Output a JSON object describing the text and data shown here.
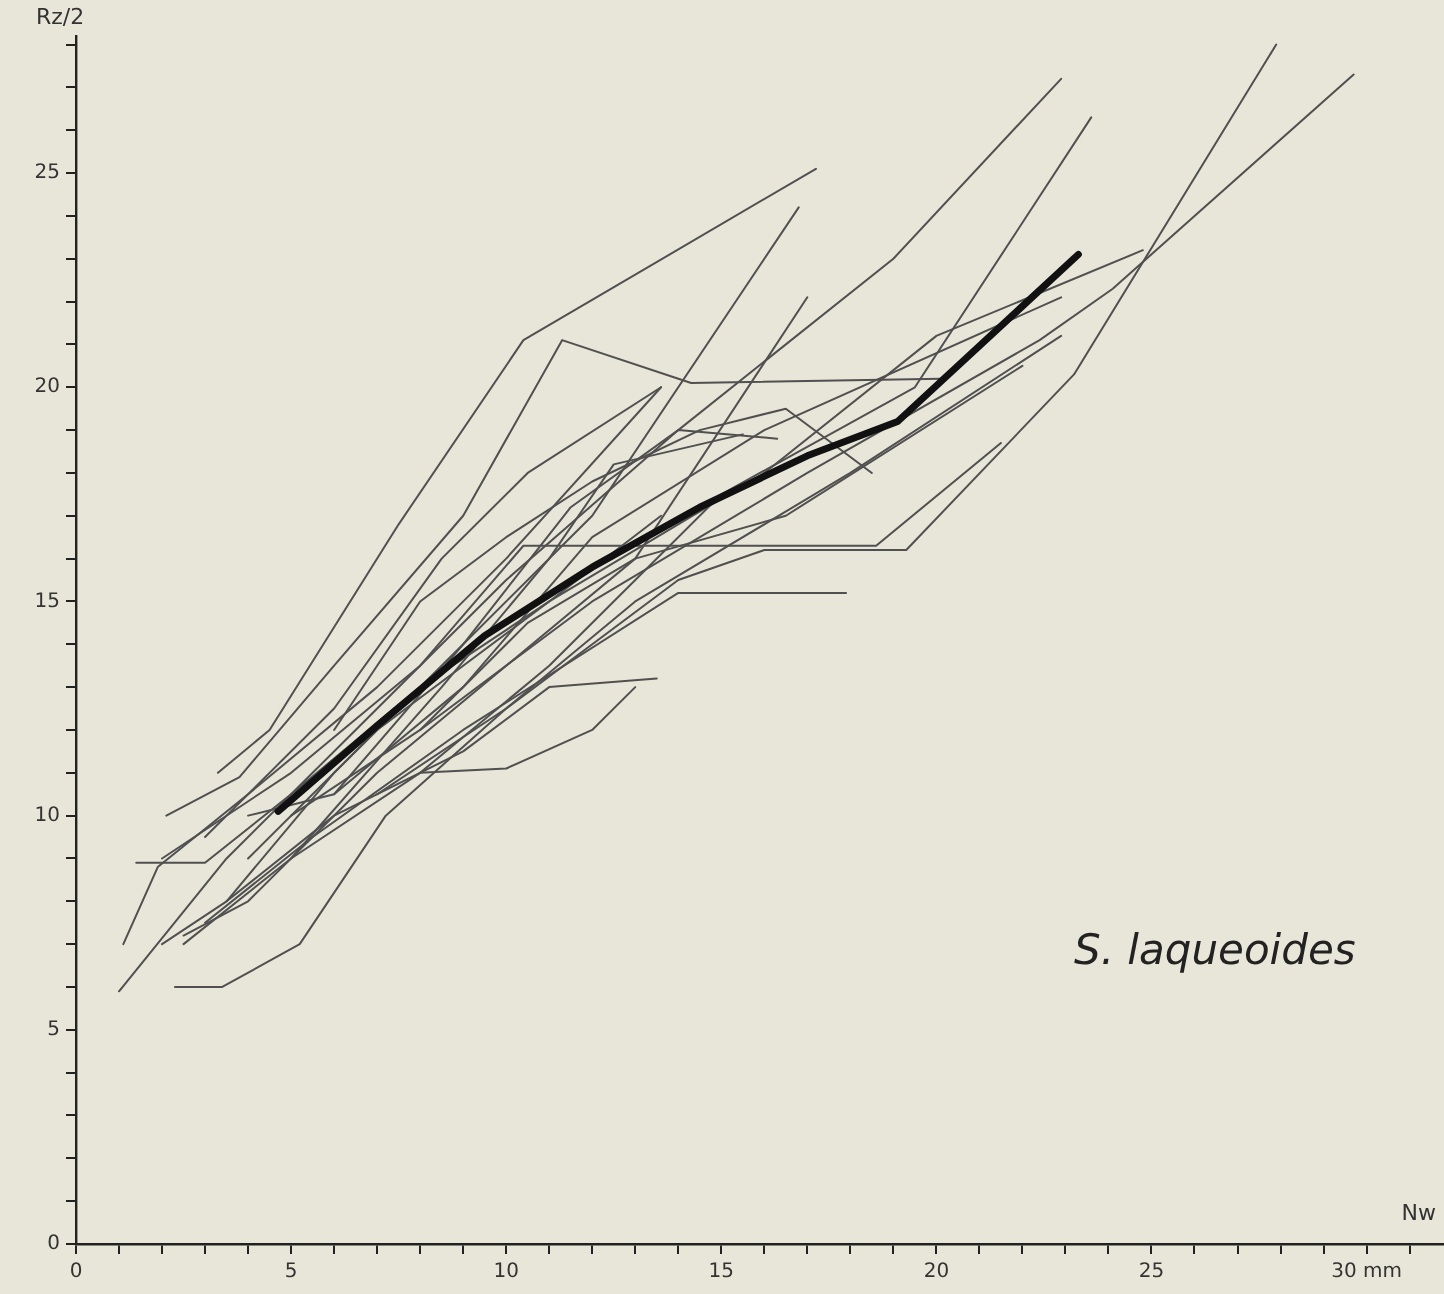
{
  "chart_data": {
    "type": "line",
    "xlabel": "Nw",
    "ylabel": "Rz/2",
    "annotations": [
      "S. laqueoides"
    ],
    "xlim": [
      0,
      31.8
    ],
    "ylim": [
      0,
      28.2
    ],
    "xticks": [
      0,
      {
        "value": 1,
        "label": null
      },
      {
        "value": 2,
        "label": null
      },
      {
        "value": 3,
        "label": null
      },
      {
        "value": 4,
        "label": null
      },
      5,
      {
        "value": 6,
        "label": null
      },
      {
        "value": 7,
        "label": null
      },
      {
        "value": 8,
        "label": null
      },
      {
        "value": 9,
        "label": null
      },
      10,
      {
        "value": 11,
        "label": null
      },
      {
        "value": 12,
        "label": null
      },
      {
        "value": 13,
        "label": null
      },
      {
        "value": 14,
        "label": null
      },
      15,
      {
        "value": 16,
        "label": null
      },
      {
        "value": 17,
        "label": null
      },
      {
        "value": 18,
        "label": null
      },
      {
        "value": 19,
        "label": null
      },
      20,
      {
        "value": 21,
        "label": null
      },
      {
        "value": 22,
        "label": null
      },
      {
        "value": 23,
        "label": null
      },
      {
        "value": 24,
        "label": null
      },
      25,
      {
        "value": 26,
        "label": null
      },
      {
        "value": 27,
        "label": null
      },
      {
        "value": 28,
        "label": null
      },
      {
        "value": 29,
        "label": null
      },
      {
        "value": 30,
        "label": "30 mm"
      },
      {
        "value": 31,
        "label": null
      }
    ],
    "yticks": [
      0,
      {
        "value": 1,
        "label": null
      },
      {
        "value": 2,
        "label": null
      },
      {
        "value": 3,
        "label": null
      },
      {
        "value": 4,
        "label": null
      },
      5,
      {
        "value": 6,
        "label": null
      },
      {
        "value": 7,
        "label": null
      },
      {
        "value": 8,
        "label": null
      },
      {
        "value": 9,
        "label": null
      },
      10,
      {
        "value": 11,
        "label": null
      },
      {
        "value": 12,
        "label": null
      },
      {
        "value": 13,
        "label": null
      },
      {
        "value": 14,
        "label": null
      },
      15,
      {
        "value": 16,
        "label": null
      },
      {
        "value": 17,
        "label": null
      },
      {
        "value": 18,
        "label": null
      },
      {
        "value": 19,
        "label": null
      },
      20,
      {
        "value": 21,
        "label": null
      },
      {
        "value": 22,
        "label": null
      },
      {
        "value": 23,
        "label": null
      },
      {
        "value": 24,
        "label": null
      },
      25,
      {
        "value": 26,
        "label": null
      },
      {
        "value": 27,
        "label": null
      },
      {
        "value": 28,
        "label": null
      }
    ],
    "legend": false,
    "marker": "none",
    "line_style": "solid",
    "series": [
      {
        "color": "#111111",
        "x": [
          4.7,
          7,
          9.5,
          12,
          14.5,
          17,
          19.1,
          23.3
        ],
        "values": [
          10.1,
          12.1,
          14.2,
          15.8,
          17.2,
          18.4,
          19.2,
          23.1
        ]
      },
      {
        "color": "#505050",
        "x": [
          3.3,
          4.5,
          7.5,
          10.4,
          17.2
        ],
        "values": [
          11.0,
          12.0,
          16.8,
          21.1,
          25.1
        ]
      },
      {
        "color": "#505050",
        "x": [
          2.1,
          3.8,
          6,
          9,
          11.3,
          14.3,
          20.1
        ],
        "values": [
          10.0,
          10.9,
          13.5,
          17,
          21.1,
          20.1,
          20.2
        ]
      },
      {
        "color": "#505050",
        "x": [
          1.0,
          3.5,
          6.5,
          10,
          14,
          19,
          22.9
        ],
        "values": [
          5.9,
          9,
          12,
          15.5,
          19,
          23,
          27.2
        ]
      },
      {
        "color": "#505050",
        "x": [
          2.3,
          3.4,
          5.2,
          7.2,
          10,
          14,
          16,
          19.3,
          23.2,
          27.9
        ],
        "values": [
          6.0,
          6.0,
          7.0,
          10.0,
          12.5,
          15.5,
          16.2,
          16.2,
          20.3,
          28.0
        ]
      },
      {
        "color": "#505050",
        "x": [
          1.4,
          3.0,
          5,
          8,
          11,
          13.6
        ],
        "values": [
          8.9,
          8.9,
          10.5,
          13,
          15,
          17
        ]
      },
      {
        "color": "#505050",
        "x": [
          1.1,
          1.9,
          4,
          7,
          10,
          13.6
        ],
        "values": [
          7.0,
          8.8,
          10.5,
          13,
          16,
          20.0
        ]
      },
      {
        "color": "#505050",
        "x": [
          2,
          3.5,
          6,
          9,
          12,
          16.8
        ],
        "values": [
          7,
          8,
          11,
          14,
          17,
          24.2
        ]
      },
      {
        "color": "#505050",
        "x": [
          2.5,
          4,
          7,
          10,
          13,
          17.0
        ],
        "values": [
          7.2,
          8,
          11,
          13.5,
          16,
          22.1
        ]
      },
      {
        "color": "#505050",
        "x": [
          2,
          5,
          8,
          10.4,
          18.6,
          21.5
        ],
        "values": [
          9,
          11,
          13.5,
          16.3,
          16.3,
          18.7
        ]
      },
      {
        "color": "#505050",
        "x": [
          3,
          5.5,
          9,
          14.0,
          17.9
        ],
        "values": [
          7.5,
          9.5,
          12,
          15.2,
          15.2
        ]
      },
      {
        "color": "#505050",
        "x": [
          4,
          7,
          11,
          16,
          20.0,
          24.8
        ],
        "values": [
          9,
          12,
          15,
          18,
          21.2,
          23.2
        ]
      },
      {
        "color": "#505050",
        "x": [
          5,
          8,
          12,
          17,
          22.4,
          24.1,
          29.7
        ],
        "values": [
          10,
          12,
          15,
          18,
          21.1,
          22.3,
          27.3
        ]
      },
      {
        "color": "#505050",
        "x": [
          8,
          11,
          15,
          19.5,
          23.6
        ],
        "values": [
          11,
          13.5,
          17.5,
          20,
          26.3
        ]
      },
      {
        "color": "#505050",
        "x": [
          7,
          10,
          13,
          18,
          22.9
        ],
        "values": [
          10.5,
          12.5,
          15,
          18,
          21.2
        ]
      },
      {
        "color": "#505050",
        "x": [
          3.5,
          6,
          9,
          11,
          13.5
        ],
        "values": [
          8,
          10,
          11.5,
          13,
          13.2
        ]
      },
      {
        "color": "#505050",
        "x": [
          2.5,
          5,
          8,
          10,
          12,
          13
        ],
        "values": [
          7,
          9,
          11,
          11.1,
          12,
          13
        ]
      },
      {
        "color": "#505050",
        "x": [
          4,
          6,
          9,
          12,
          16,
          22.9
        ],
        "values": [
          10,
          10.5,
          13,
          16.5,
          19,
          22.1
        ]
      },
      {
        "color": "#505050",
        "x": [
          6,
          8,
          10,
          12,
          14.5,
          16.5,
          18.5
        ],
        "values": [
          12,
          15,
          16.5,
          17.8,
          19,
          19.5,
          18
        ]
      },
      {
        "color": "#505050",
        "x": [
          5,
          8.5,
          11,
          12.5,
          15.5
        ],
        "values": [
          9,
          13,
          16,
          18.2,
          18.9
        ]
      },
      {
        "color": "#505050",
        "x": [
          6,
          9,
          11.5,
          14,
          16.3
        ],
        "values": [
          10.5,
          14,
          17.2,
          19,
          18.8
        ]
      },
      {
        "color": "#505050",
        "x": [
          8,
          10.5,
          13,
          16.5,
          22
        ],
        "values": [
          12,
          14.5,
          16,
          17,
          20.5
        ]
      },
      {
        "color": "#505050",
        "x": [
          3,
          6,
          8.5,
          10.5,
          13.6
        ],
        "values": [
          9.5,
          12.5,
          16,
          18,
          20.0
        ]
      }
    ]
  }
}
